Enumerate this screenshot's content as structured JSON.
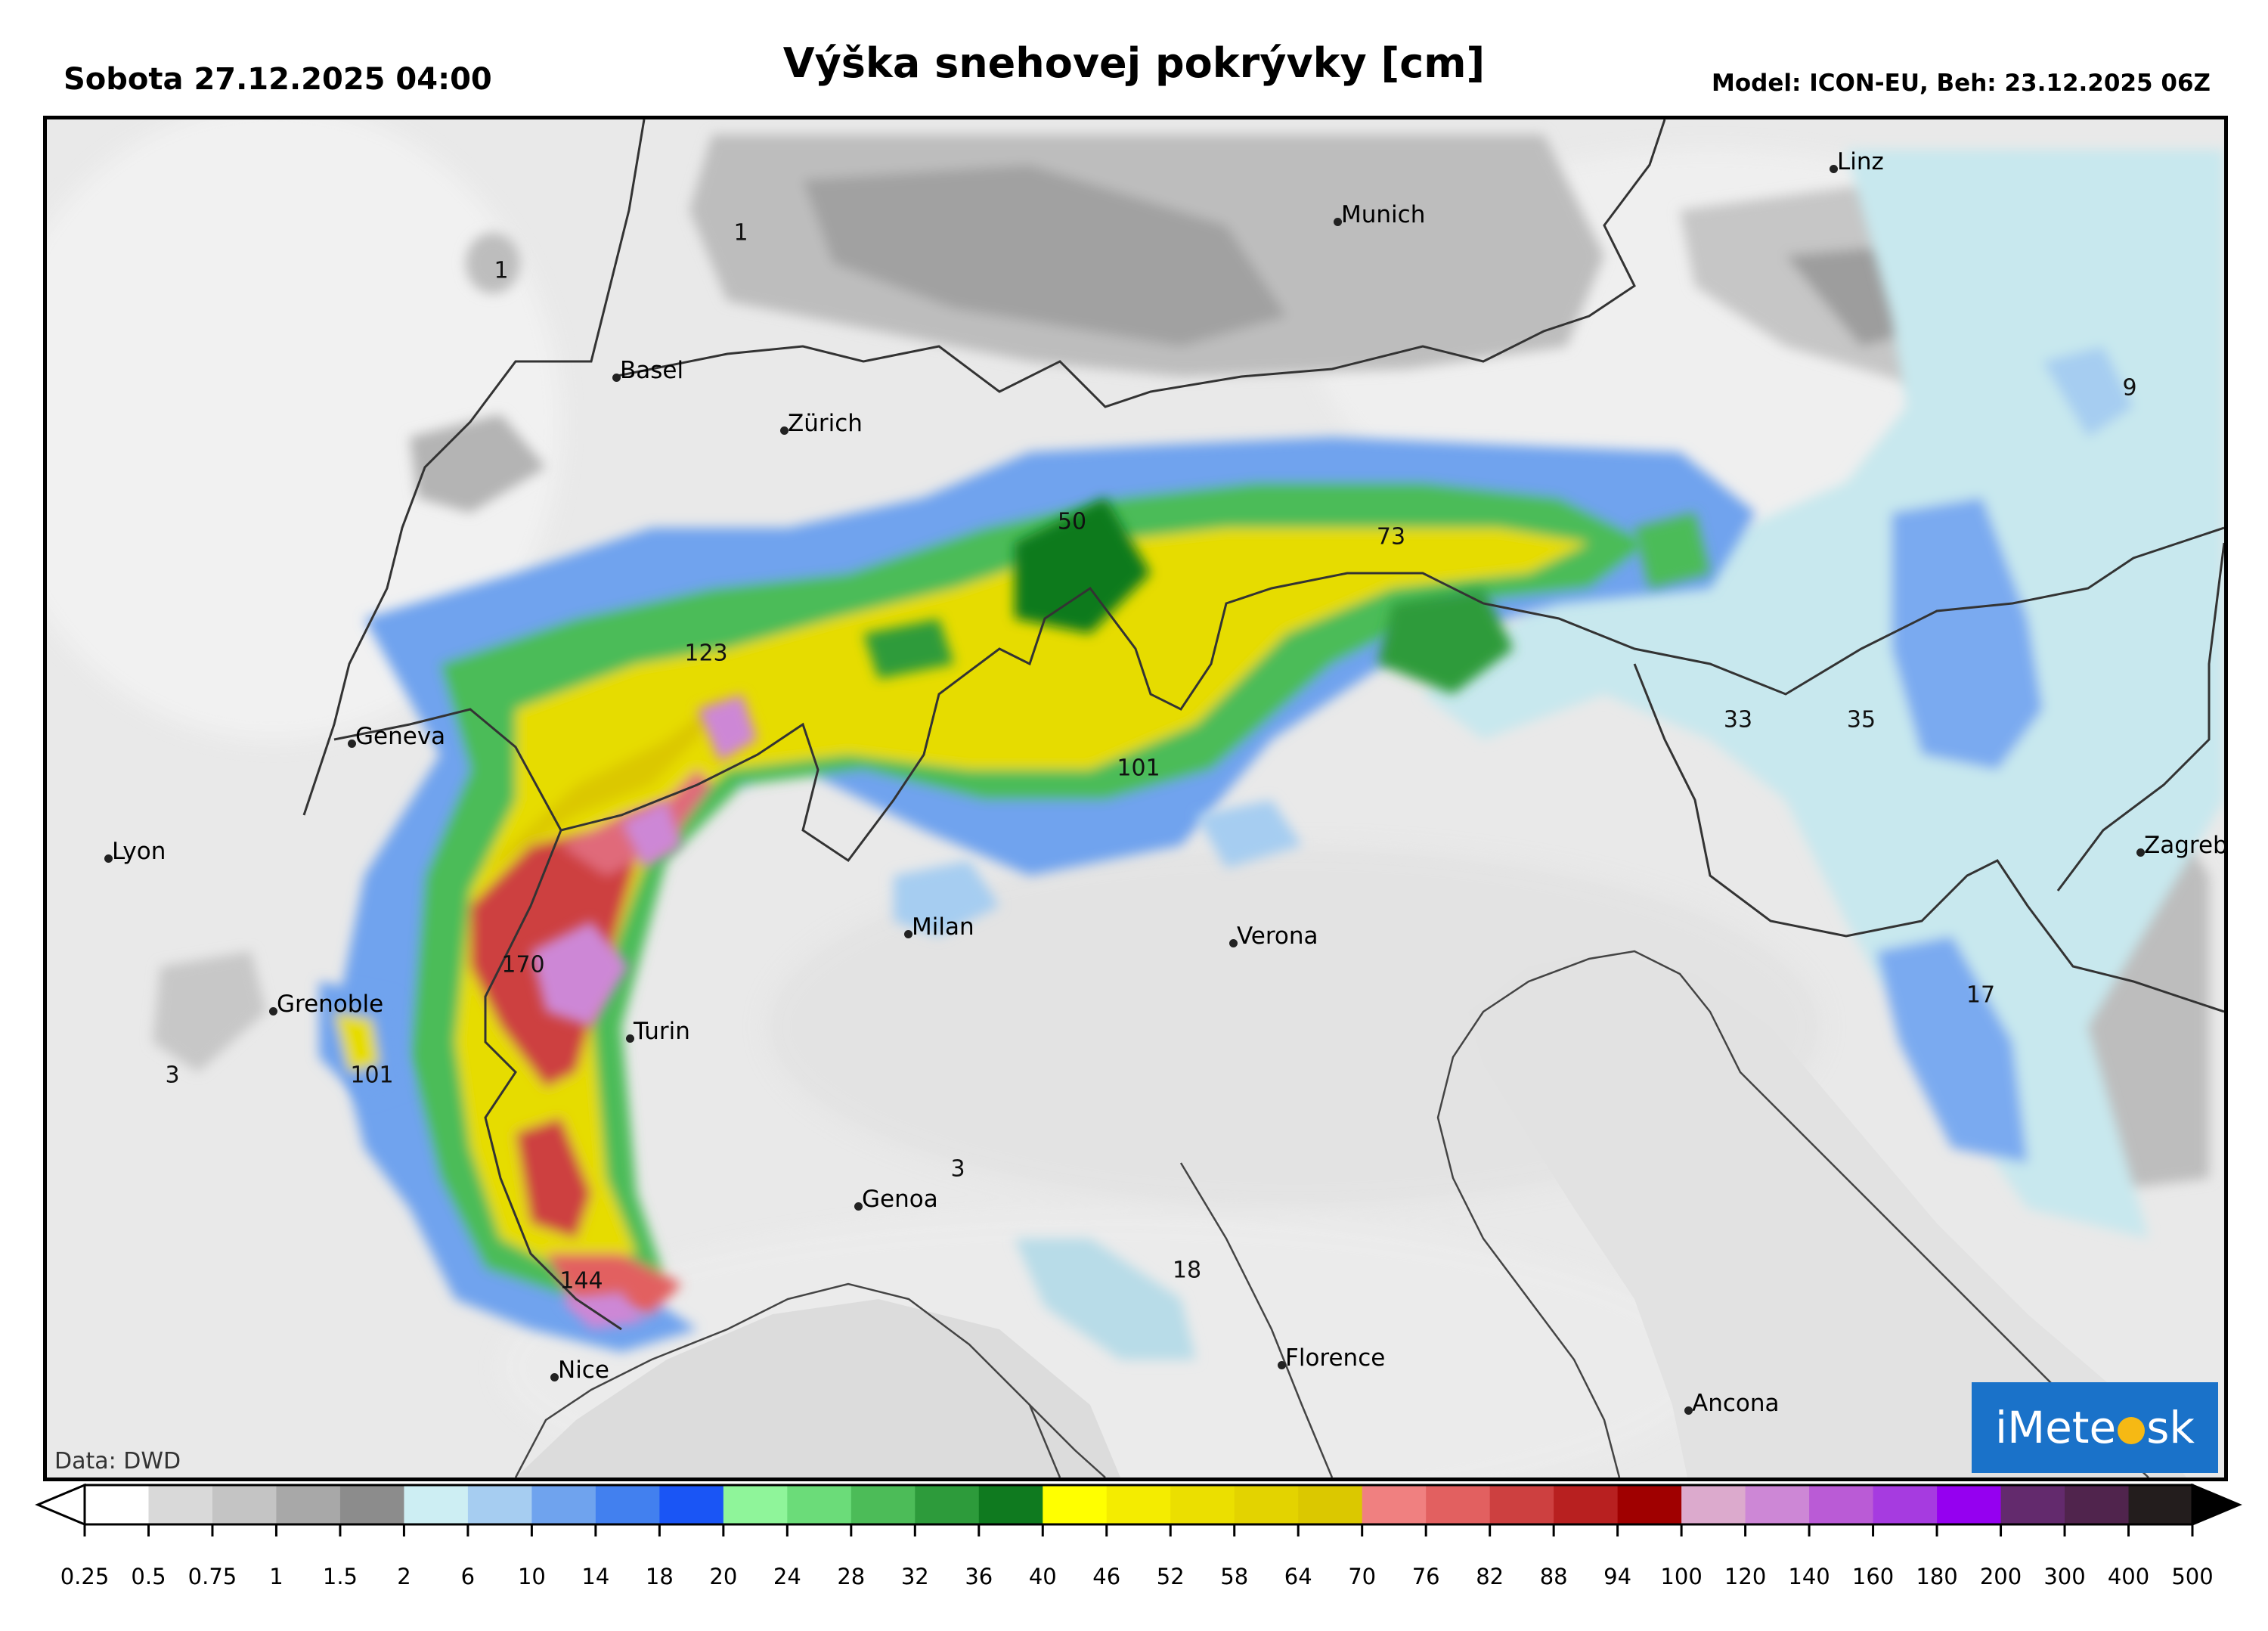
{
  "header": {
    "date_label": "Sobota 27.12.2025 04:00",
    "title": "Výška snehovej pokrývky [cm]",
    "model_label": "Model: ICON-EU, Beh: 23.12.2025 06Z"
  },
  "map": {
    "cities": [
      {
        "name": "Linz"
      },
      {
        "name": "Munich"
      },
      {
        "name": "Basel"
      },
      {
        "name": "Zürich"
      },
      {
        "name": "Geneva"
      },
      {
        "name": "Lyon"
      },
      {
        "name": "Milan"
      },
      {
        "name": "Verona"
      },
      {
        "name": "Grenoble"
      },
      {
        "name": "Turin"
      },
      {
        "name": "Genoa"
      },
      {
        "name": "Nice"
      },
      {
        "name": "Florence"
      },
      {
        "name": "Ancona"
      },
      {
        "name": "Zagreb"
      }
    ],
    "value_labels": [
      "1",
      "1",
      "9",
      "50",
      "73",
      "123",
      "101",
      "33",
      "35",
      "170",
      "101",
      "3",
      "17",
      "3",
      "18",
      "144"
    ],
    "credit": "Data: DWD",
    "logo_text_1": "iMete",
    "logo_text_2": "sk"
  },
  "legend": {
    "ticks": [
      "0.25",
      "0.5",
      "0.75",
      "1",
      "1.5",
      "2",
      "6",
      "10",
      "14",
      "18",
      "20",
      "24",
      "28",
      "32",
      "36",
      "40",
      "46",
      "52",
      "58",
      "64",
      "70",
      "76",
      "82",
      "88",
      "94",
      "100",
      "120",
      "140",
      "160",
      "180",
      "200",
      "300",
      "400",
      "500"
    ],
    "colors": [
      "#ffffff",
      "#d9d9d9",
      "#c4c4c4",
      "#a8a8a8",
      "#8c8c8c",
      "#cdeef3",
      "#a6cdf1",
      "#6fa3ee",
      "#4280ef",
      "#1a55f5",
      "#8ff59a",
      "#6bdc79",
      "#4cbc58",
      "#2d9b3b",
      "#0f7a1f",
      "#ffff00",
      "#f4ec00",
      "#ebdf00",
      "#e3d300",
      "#dbc800",
      "#f08080",
      "#e26060",
      "#cd4040",
      "#b82020",
      "#a00000",
      "#dcaacd",
      "#cd87d6",
      "#ba5bd6",
      "#a63be0",
      "#9500f0",
      "#632a6d",
      "#50244d",
      "#231d1d"
    ],
    "arrow_left_color": "#ffffff",
    "arrow_right_color": "#000000"
  }
}
